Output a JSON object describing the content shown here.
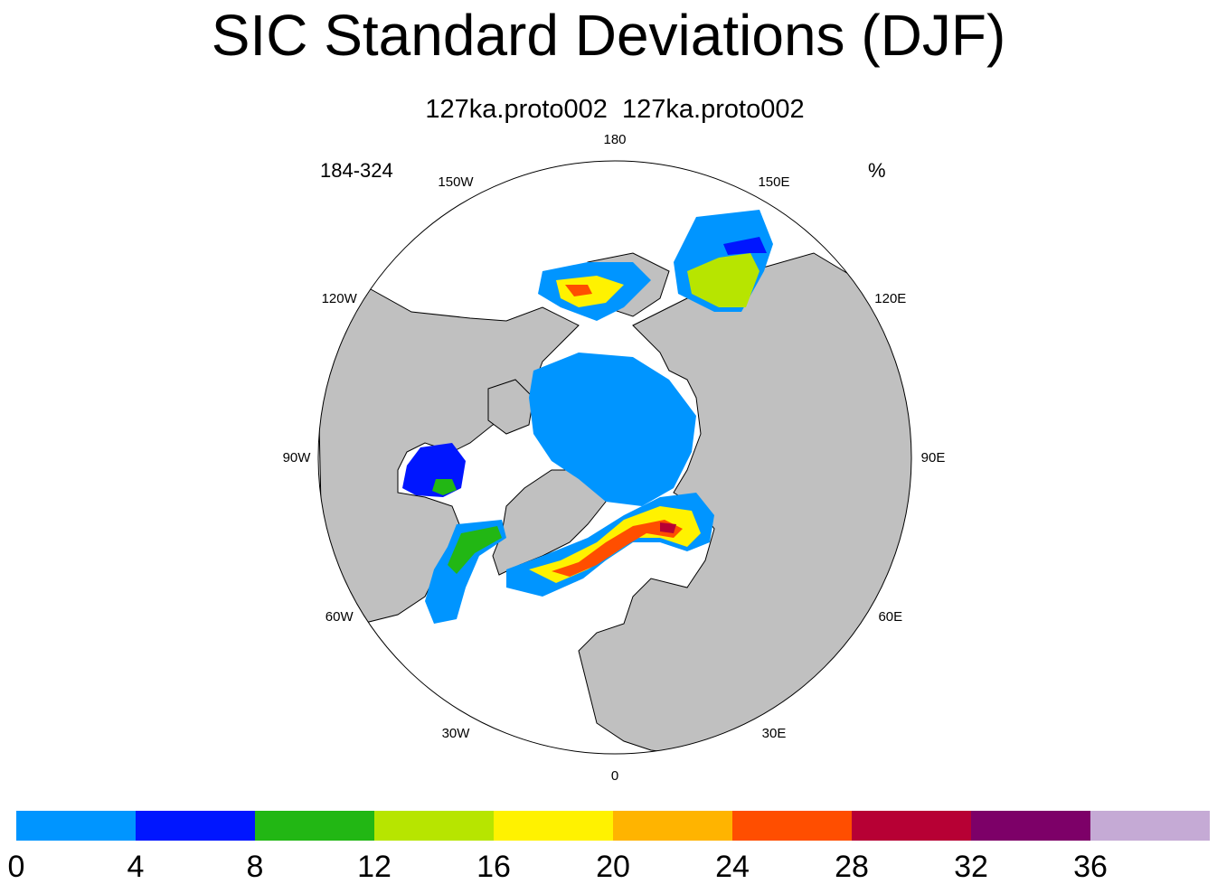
{
  "title": "SIC Standard Deviations (DJF)",
  "subtitle": "127ka.proto002  127ka.proto002",
  "left_label": "184-324",
  "right_label": "%",
  "longitude_labels": [
    {
      "text": "180",
      "lon": 180
    },
    {
      "text": "150E",
      "lon": 150
    },
    {
      "text": "120E",
      "lon": 120
    },
    {
      "text": "90E",
      "lon": 90
    },
    {
      "text": "60E",
      "lon": 60
    },
    {
      "text": "30E",
      "lon": 30
    },
    {
      "text": "0",
      "lon": 0
    },
    {
      "text": "30W",
      "lon": -30
    },
    {
      "text": "60W",
      "lon": -60
    },
    {
      "text": "90W",
      "lon": -90
    },
    {
      "text": "120W",
      "lon": -120
    },
    {
      "text": "150W",
      "lon": -150
    }
  ],
  "colors": {
    "land": "#c0c0c0",
    "ocean": "#ffffff",
    "coast": "#000000"
  },
  "colorbar": {
    "ticks": [
      "0",
      "4",
      "8",
      "12",
      "16",
      "20",
      "24",
      "28",
      "32",
      "36"
    ],
    "colors": [
      "#0095ff",
      "#0016ff",
      "#22b714",
      "#b7e500",
      "#fff200",
      "#ffb400",
      "#ff4e00",
      "#b70034",
      "#7d0068",
      "#c5aad5"
    ]
  }
}
